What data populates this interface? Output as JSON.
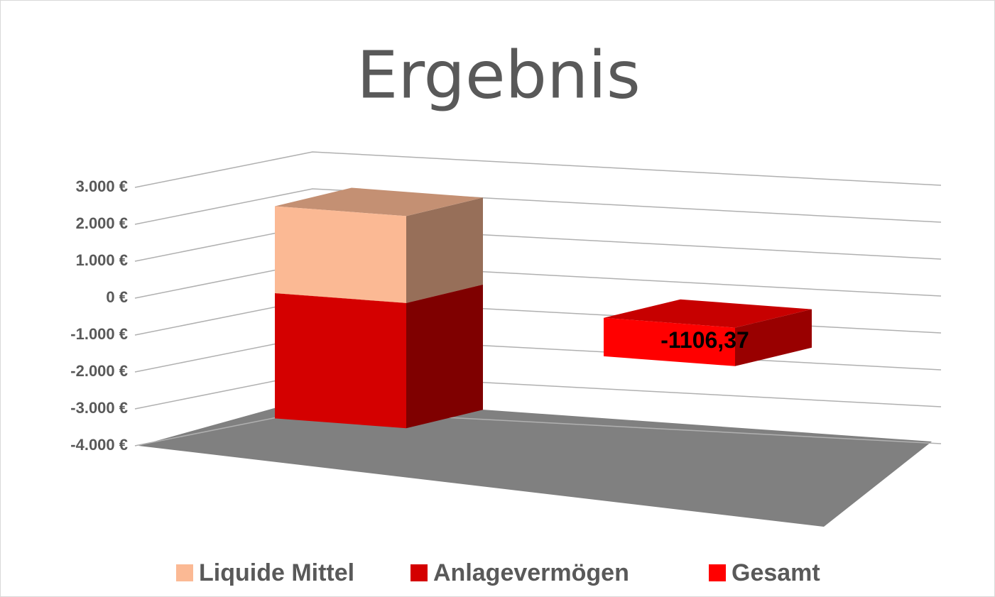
{
  "chart_data": {
    "type": "bar3d-stacked",
    "title": "Ergebnis",
    "categories": [
      null,
      null
    ],
    "series": [
      {
        "name": "Liquide Mittel",
        "color": "#fbb994",
        "values": [
          2500,
          null
        ]
      },
      {
        "name": "Anlagevermögen",
        "color": "#d40000",
        "values": [
          -3600,
          null
        ]
      },
      {
        "name": "Gesamt",
        "color": "#ff0000",
        "values": [
          null,
          -1106.37
        ],
        "value_labels": [
          null,
          "-1106,37"
        ]
      }
    ],
    "ylim": [
      -4000,
      3000
    ],
    "yticks": [
      {
        "value": -4000,
        "label": "-4.000 €"
      },
      {
        "value": -3000,
        "label": "-3.000 €"
      },
      {
        "value": -2000,
        "label": "-2.000 €"
      },
      {
        "value": -1000,
        "label": "-1.000 €"
      },
      {
        "value": 0,
        "label": "0 €"
      },
      {
        "value": 1000,
        "label": "1.000 €"
      },
      {
        "value": 2000,
        "label": "2.000 €"
      },
      {
        "value": 3000,
        "label": "3.000 €"
      }
    ],
    "grid": true,
    "legend": "bottom"
  }
}
